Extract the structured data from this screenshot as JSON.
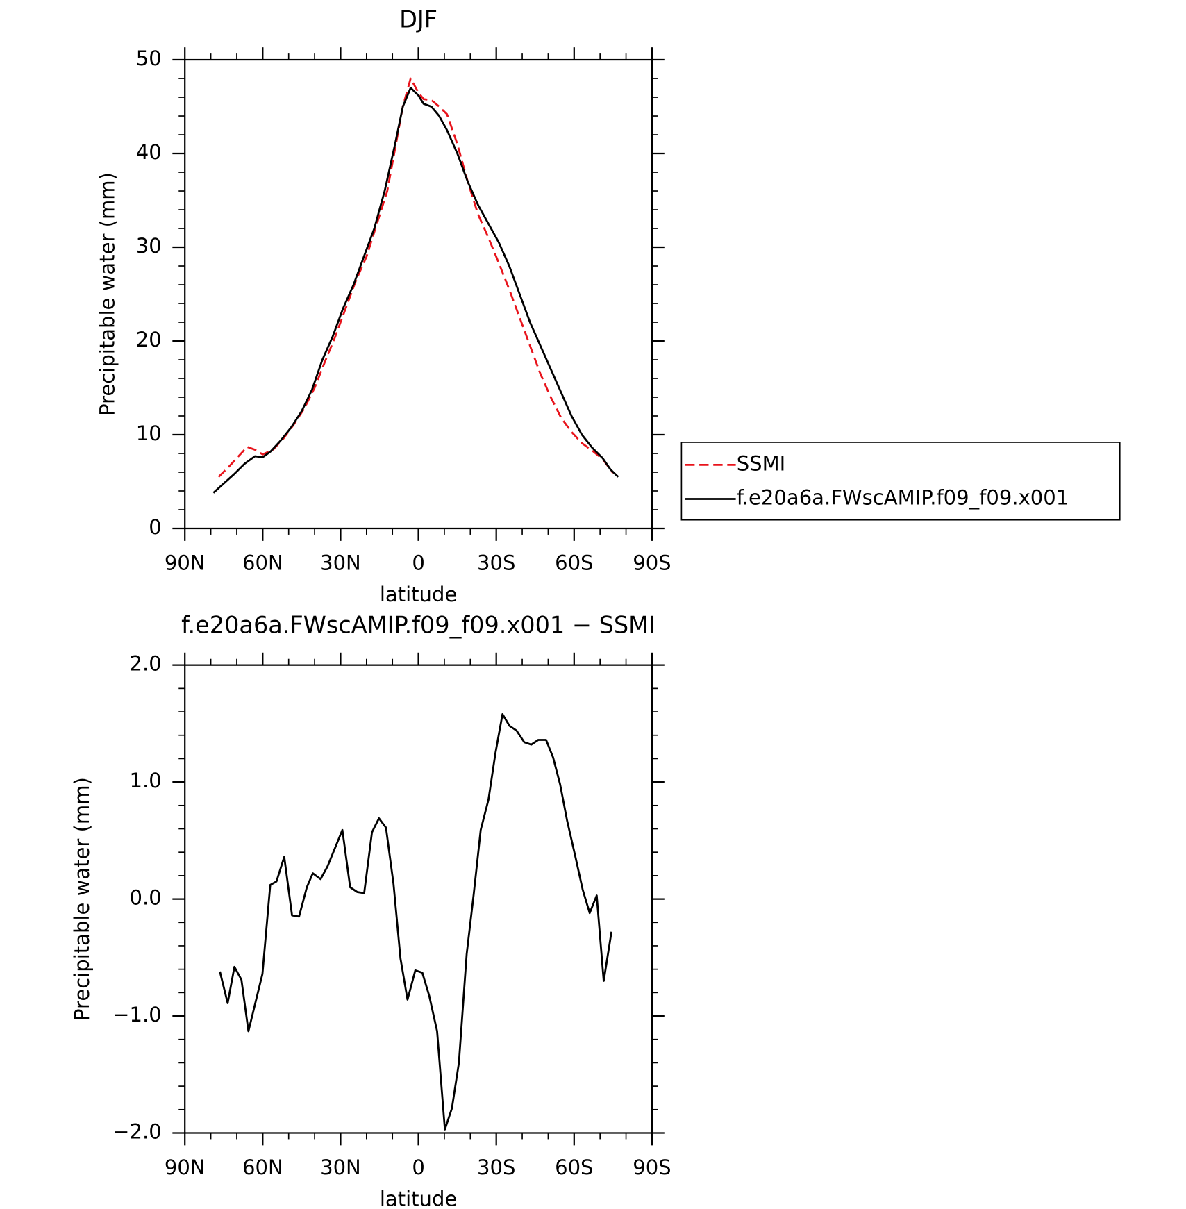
{
  "chart_data": [
    {
      "type": "line",
      "title": "DJF",
      "xlabel": "latitude",
      "ylabel": "Precipitable water (mm)",
      "xlim": [
        90,
        -90
      ],
      "xticks": [
        {
          "value": 90,
          "label": "90N"
        },
        {
          "value": 60,
          "label": "60N"
        },
        {
          "value": 30,
          "label": "30N"
        },
        0,
        {
          "value": -30,
          "label": "30S"
        },
        {
          "value": -60,
          "label": "60S"
        },
        {
          "value": -90,
          "label": "90S"
        }
      ],
      "ylim": [
        0,
        50
      ],
      "yticks": [
        0,
        10,
        20,
        30,
        40,
        50
      ],
      "legend": "right",
      "series": [
        {
          "name": "SSMI",
          "color": "#e8141c",
          "dash": true,
          "x": [
            77,
            73,
            69,
            66,
            63,
            60,
            56,
            52,
            48,
            44,
            40,
            36,
            32,
            28,
            24,
            20,
            16,
            12,
            9,
            6,
            3,
            0,
            -2,
            -5,
            -8,
            -11,
            -15,
            -19,
            -23,
            -27,
            -31,
            -35,
            -39,
            -43,
            -47,
            -51,
            -55,
            -59,
            -63,
            -67,
            -71,
            -75
          ],
          "values": [
            5.5,
            6.6,
            7.8,
            8.7,
            8.4,
            7.9,
            8.4,
            9.6,
            11.1,
            12.8,
            15,
            17.8,
            20.5,
            23.5,
            26.5,
            29,
            32.5,
            36,
            40.5,
            45,
            48,
            46.5,
            45.8,
            45.7,
            45,
            44.2,
            41,
            37,
            33.5,
            31,
            28.3,
            25.5,
            22.5,
            19.5,
            16.5,
            14,
            11.8,
            10.3,
            9.1,
            8.3,
            7.4,
            5.9
          ]
        },
        {
          "name": "f.e20a6a.FWscAMIP.f09_f09.x001",
          "color": "#000000",
          "dash": false,
          "x": [
            79,
            75,
            71,
            67,
            63,
            60,
            57,
            53,
            49,
            45,
            41,
            37,
            33,
            29,
            25,
            21,
            17,
            13,
            9,
            6,
            3,
            0,
            -2,
            -5,
            -8,
            -11,
            -15,
            -19,
            -23,
            -27,
            -31,
            -35,
            -39,
            -43,
            -47,
            -51,
            -55,
            -59,
            -63,
            -67,
            -71,
            -74,
            -77
          ],
          "values": [
            3.8,
            4.8,
            5.8,
            6.9,
            7.7,
            7.6,
            8.2,
            9.4,
            10.8,
            12.5,
            14.8,
            18,
            20.5,
            23.5,
            26,
            29,
            32,
            36,
            41,
            45,
            47,
            46.2,
            45.3,
            45,
            44,
            42.5,
            40,
            37,
            34.5,
            32.5,
            30.5,
            28,
            25,
            22,
            19.5,
            17,
            14.5,
            12,
            10,
            8.6,
            7.5,
            6.3,
            5.5
          ]
        }
      ]
    },
    {
      "type": "line",
      "title": "f.e20a6a.FWscAMIP.f09_f09.x001 − SSMI",
      "xlabel": "latitude",
      "ylabel": "Precipitable water (mm)",
      "xlim": [
        90,
        -90
      ],
      "xticks": [
        {
          "value": 90,
          "label": "90N"
        },
        {
          "value": 60,
          "label": "60N"
        },
        {
          "value": 30,
          "label": "30N"
        },
        0,
        {
          "value": -30,
          "label": "30S"
        },
        {
          "value": -60,
          "label": "60S"
        },
        {
          "value": -90,
          "label": "90S"
        }
      ],
      "ylim": [
        -2,
        2
      ],
      "yticks": [
        {
          "value": -2,
          "label": "−2.0"
        },
        {
          "value": -1,
          "label": "−1.0"
        },
        {
          "value": 0,
          "label": "0.0"
        },
        {
          "value": 1,
          "label": "1.0"
        },
        {
          "value": 2,
          "label": "2.0"
        }
      ],
      "series": [
        {
          "color": "#000000",
          "dash": false,
          "x": [
            76.5,
            73.5,
            70.9,
            68.2,
            65.5,
            60.1,
            57.1,
            54.7,
            51.7,
            48.7,
            46,
            43,
            40.7,
            37.7,
            35,
            29.3,
            26.3,
            23.6,
            20.9,
            17.9,
            15.2,
            12.5,
            9.6,
            6.9,
            4.2,
            1.2,
            -1.5,
            -4.2,
            -7.2,
            -10.2,
            -12.9,
            -15.6,
            -18.6,
            -21.3,
            -24,
            -27,
            -29.7,
            -32.4,
            -35.1,
            -37.8,
            -40.8,
            -43.5,
            -46.2,
            -49.2,
            -51.9,
            -54.6,
            -57.3,
            -60.6,
            -63.3,
            -66,
            -68.7,
            -71.4,
            -74.4
          ],
          "values": [
            -0.62,
            -0.89,
            -0.58,
            -0.69,
            -1.13,
            -0.64,
            0.12,
            0.15,
            0.36,
            -0.14,
            -0.15,
            0.1,
            0.22,
            0.17,
            0.28,
            0.59,
            0.1,
            0.06,
            0.05,
            0.57,
            0.69,
            0.61,
            0.13,
            -0.51,
            -0.86,
            -0.61,
            -0.63,
            -0.83,
            -1.13,
            -1.97,
            -1.79,
            -1.4,
            -0.47,
            0.04,
            0.59,
            0.85,
            1.25,
            1.58,
            1.48,
            1.44,
            1.34,
            1.32,
            1.36,
            1.36,
            1.21,
            0.98,
            0.67,
            0.35,
            0.08,
            -0.12,
            0.03,
            -0.7,
            -0.28
          ]
        }
      ]
    }
  ]
}
